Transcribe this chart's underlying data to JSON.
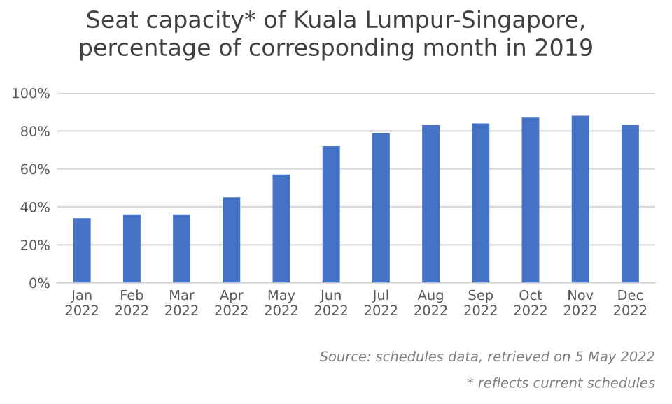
{
  "chart_data": {
    "type": "bar",
    "title": "Seat capacity* of Kuala Lumpur-Singapore,\npercentage of corresponding month in 2019",
    "categories": [
      "Jan\n2022",
      "Feb\n2022",
      "Mar\n2022",
      "Apr\n2022",
      "May\n2022",
      "Jun\n2022",
      "Jul\n2022",
      "Aug\n2022",
      "Sep\n2022",
      "Oct\n2022",
      "Nov\n2022",
      "Dec\n2022"
    ],
    "values": [
      34,
      36,
      36,
      45,
      57,
      72,
      79,
      83,
      84,
      87,
      88,
      83
    ],
    "color": "#4472c4",
    "ylim": [
      0,
      100
    ],
    "yticks": [
      {
        "value": 0,
        "label": "0%"
      },
      {
        "value": 20,
        "label": "20%"
      },
      {
        "value": 40,
        "label": "40%"
      },
      {
        "value": 60,
        "label": "60%"
      },
      {
        "value": 80,
        "label": "80%"
      },
      {
        "value": 100,
        "label": "100%"
      }
    ],
    "grid": "y",
    "annotations": [
      "Source: schedules data, retrieved on 5 May 2022",
      "* reflects current schedules"
    ]
  }
}
